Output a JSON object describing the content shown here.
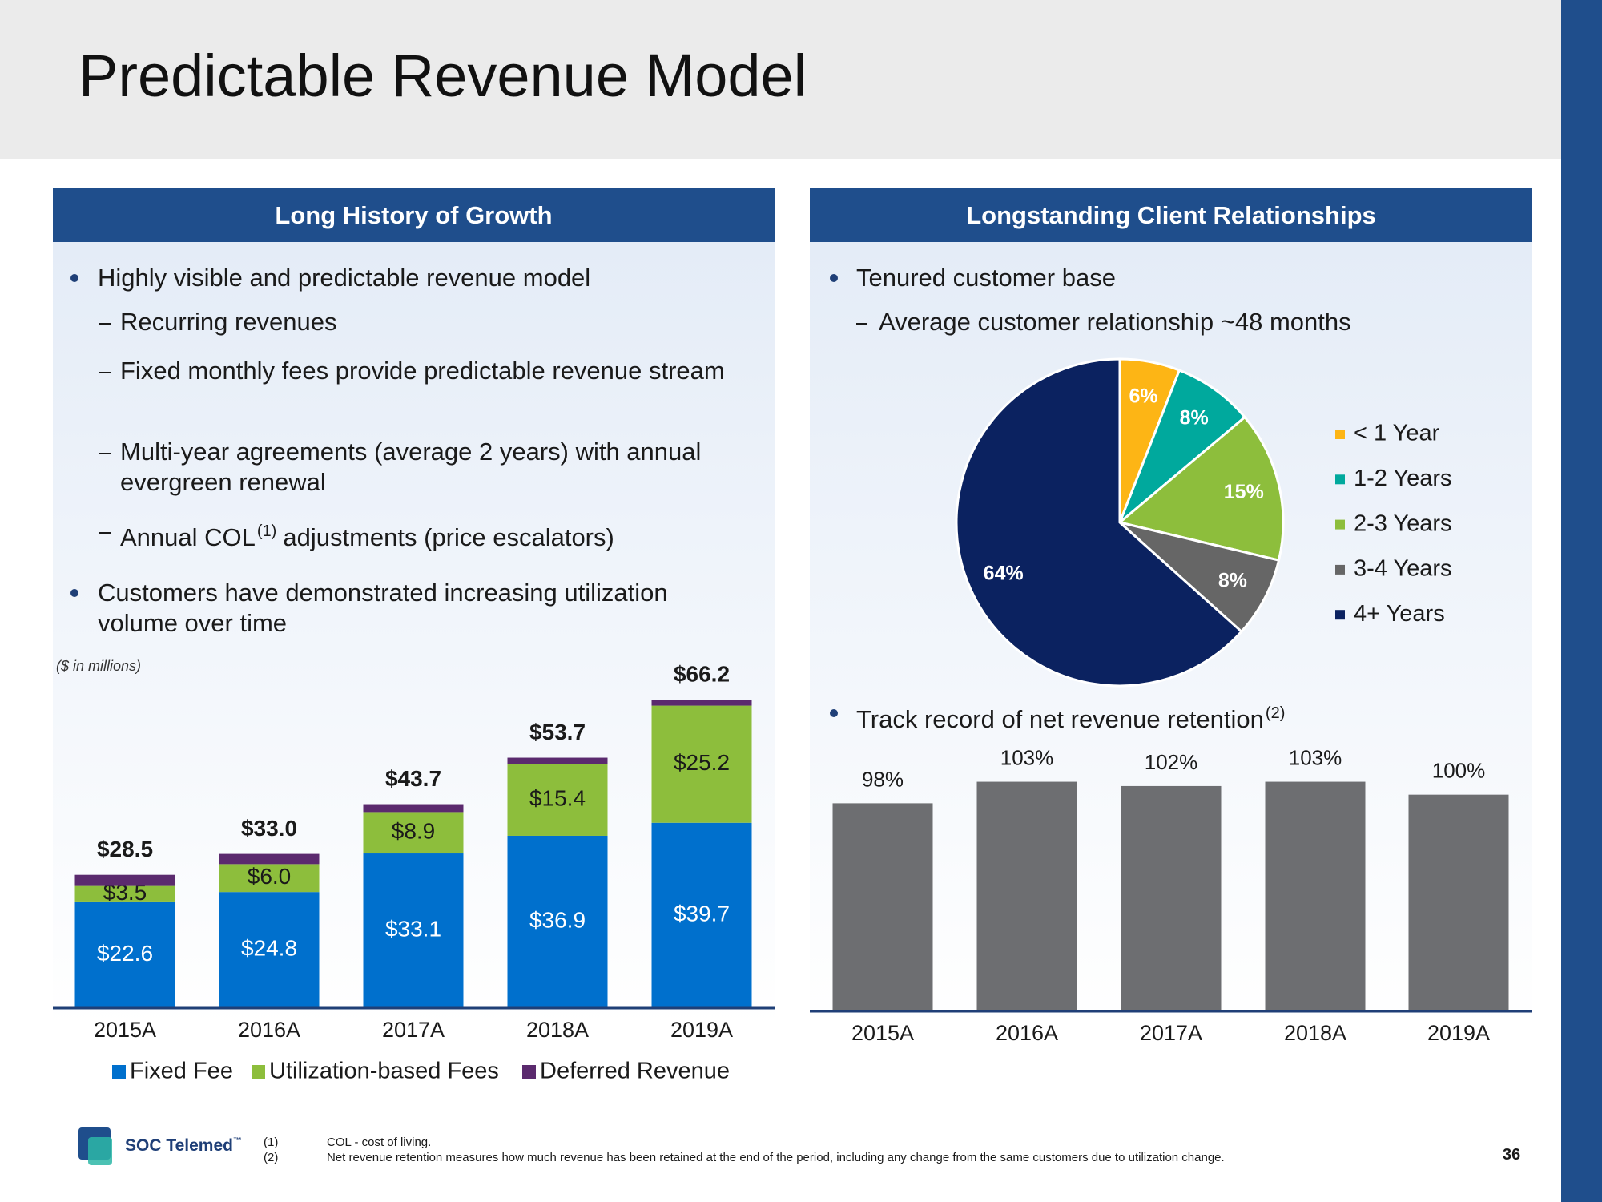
{
  "title": "Predictable Revenue Model",
  "left_panel": {
    "header": "Long History of Growth",
    "bullets": [
      {
        "text": "Highly visible and predictable revenue model",
        "sub": [
          {
            "text": "Recurring revenues"
          },
          {
            "text": "Fixed monthly fees provide predictable revenue stream"
          },
          {
            "text": "Multi-year agreements (average 2 years) with annual evergreen renewal"
          },
          {
            "text": "Annual COL",
            "sup": "(1)",
            "rest": "adjustments (price escalators)"
          }
        ]
      },
      {
        "text": "Customers have demonstrated increasing utilization volume over time",
        "sub": []
      }
    ]
  },
  "right_panel": {
    "header": "Longstanding Client Relationships",
    "bullets": [
      {
        "text": "Tenured customer base",
        "sub": [
          {
            "text": "Average customer relationship ~48 months"
          }
        ]
      },
      {
        "text": "Track record of net revenue retention",
        "sup": "(2)",
        "sub": []
      }
    ]
  },
  "chart_data": [
    {
      "type": "stacked-bar",
      "subtitle": "($ in millions)",
      "categories": [
        "2015A",
        "2016A",
        "2017A",
        "2018A",
        "2019A"
      ],
      "series": [
        {
          "name": "Fixed Fee",
          "color": "#0070CD",
          "label_color": "#ffffff",
          "values": [
            22.6,
            24.8,
            33.1,
            36.9,
            39.7
          ],
          "value_labels": [
            "$22.6",
            "$24.8",
            "$33.1",
            "$36.9",
            "$39.7"
          ]
        },
        {
          "name": "Utilization-based Fees",
          "color": "#8DBE3C",
          "label_color": "#1a1a1a",
          "values": [
            3.5,
            6.0,
            8.9,
            15.4,
            25.2
          ],
          "value_labels": [
            "$3.5",
            "$6.0",
            "$8.9",
            "$15.4",
            "$25.2"
          ]
        },
        {
          "name": "Deferred Revenue",
          "color": "#5B2A6E",
          "values": [
            2.4,
            2.2,
            1.7,
            1.4,
            1.3
          ]
        }
      ],
      "totals": {
        "values": [
          28.5,
          33.0,
          43.7,
          53.7,
          66.2
        ],
        "value_labels": [
          "$28.5",
          "$33.0",
          "$43.7",
          "$53.7",
          "$66.2"
        ]
      },
      "ylim": [
        0,
        70
      ],
      "legend": "bottom"
    },
    {
      "type": "pie",
      "categories": [
        "< 1 Year",
        "1-2 Years",
        "2-3 Years",
        "3-4 Years",
        "4+ Years"
      ],
      "values": [
        6,
        8,
        15,
        8,
        64
      ],
      "value_labels": [
        "6%",
        "8%",
        "15%",
        "8%",
        "64%"
      ],
      "colors": [
        "#FDB515",
        "#00A99D",
        "#8DBE3C",
        "#666666",
        "#0B2260"
      ],
      "legend": "right"
    },
    {
      "type": "bar",
      "categories": [
        "2015A",
        "2016A",
        "2017A",
        "2018A",
        "2019A"
      ],
      "values": [
        98,
        103,
        102,
        103,
        100
      ],
      "value_labels": [
        "98%",
        "103%",
        "102%",
        "103%",
        "100%"
      ],
      "color": "#6D6E71",
      "ylim": [
        50,
        110
      ]
    }
  ],
  "footnotes": [
    {
      "marker": "(1)",
      "text": "COL - cost of living."
    },
    {
      "marker": "(2)",
      "text": "Net revenue retention measures how much revenue has been retained at the end of the period, including any change from the same customers due to utilization change."
    }
  ],
  "logo": {
    "name": "SOC Telemed",
    "trademark": "™"
  },
  "page_number": "36"
}
